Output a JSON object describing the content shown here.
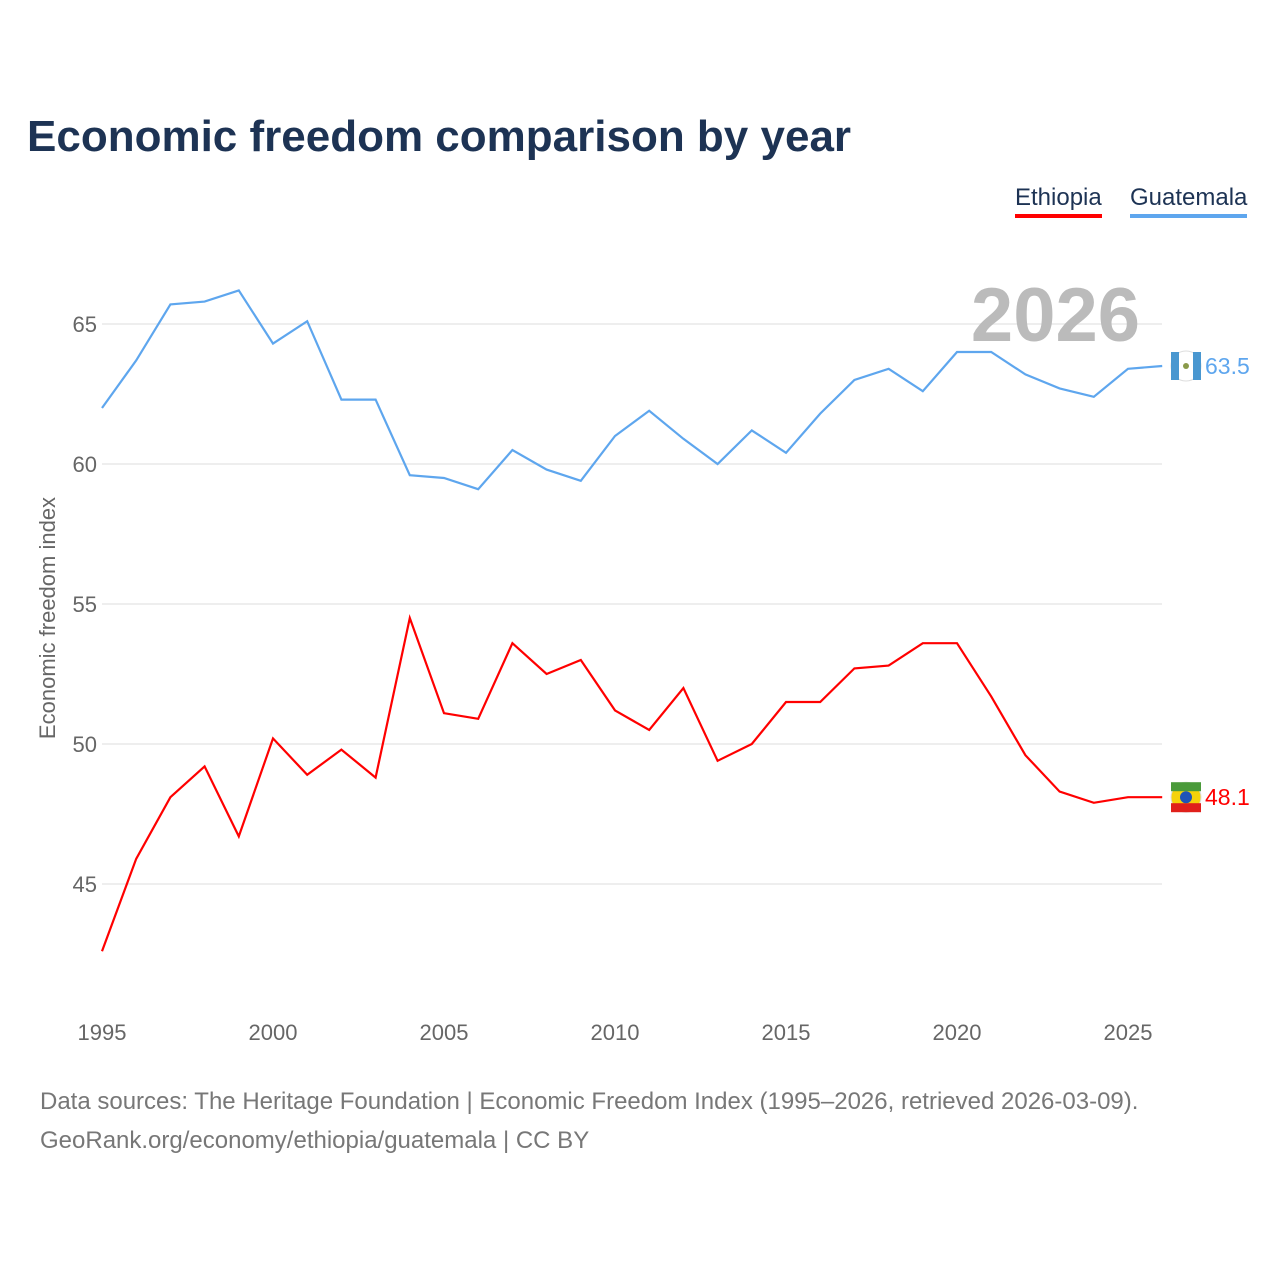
{
  "chart_data": {
    "type": "line",
    "title": "Economic freedom comparison by year",
    "ylabel": "Economic freedom index",
    "xlabel": "",
    "year_label": "2026",
    "x": [
      1995,
      1996,
      1997,
      1998,
      1999,
      2000,
      2001,
      2002,
      2003,
      2004,
      2005,
      2006,
      2007,
      2008,
      2009,
      2010,
      2011,
      2012,
      2013,
      2014,
      2015,
      2016,
      2017,
      2018,
      2019,
      2020,
      2021,
      2022,
      2023,
      2024,
      2025,
      2026
    ],
    "xticks": [
      "1995",
      "2000",
      "2005",
      "2010",
      "2015",
      "2020",
      "2025"
    ],
    "yticks": [
      "45",
      "50",
      "55",
      "60",
      "65"
    ],
    "ylim": [
      41,
      69
    ],
    "xlim": [
      1995,
      2026
    ],
    "legend_position": "top-right",
    "series": [
      {
        "name": "Ethiopia",
        "color": "#ff0000",
        "end_label": "48.1",
        "values": [
          42.6,
          45.9,
          48.1,
          49.2,
          46.7,
          50.2,
          48.9,
          49.8,
          48.8,
          54.5,
          51.1,
          50.9,
          53.6,
          52.5,
          53.0,
          51.2,
          50.5,
          52.0,
          49.4,
          50.0,
          51.5,
          51.5,
          52.7,
          52.8,
          53.6,
          53.6,
          51.7,
          49.6,
          48.3,
          47.9,
          48.1,
          48.1
        ]
      },
      {
        "name": "Guatemala",
        "color": "#5ea6ee",
        "end_label": "63.5",
        "values": [
          62.0,
          63.7,
          65.7,
          65.8,
          66.2,
          64.3,
          65.1,
          62.3,
          62.3,
          59.6,
          59.5,
          59.1,
          60.5,
          59.8,
          59.4,
          61.0,
          61.9,
          60.9,
          60.0,
          61.2,
          60.4,
          61.8,
          63.0,
          63.4,
          62.6,
          64.0,
          64.0,
          63.2,
          62.7,
          62.4,
          63.4,
          63.5
        ]
      }
    ]
  },
  "footer": {
    "line1": "Data sources: The Heritage Foundation | Economic Freedom Index (1995–2026, retrieved 2026-03-09).",
    "line2": "GeoRank.org/economy/ethiopia/guatemala | CC BY"
  }
}
